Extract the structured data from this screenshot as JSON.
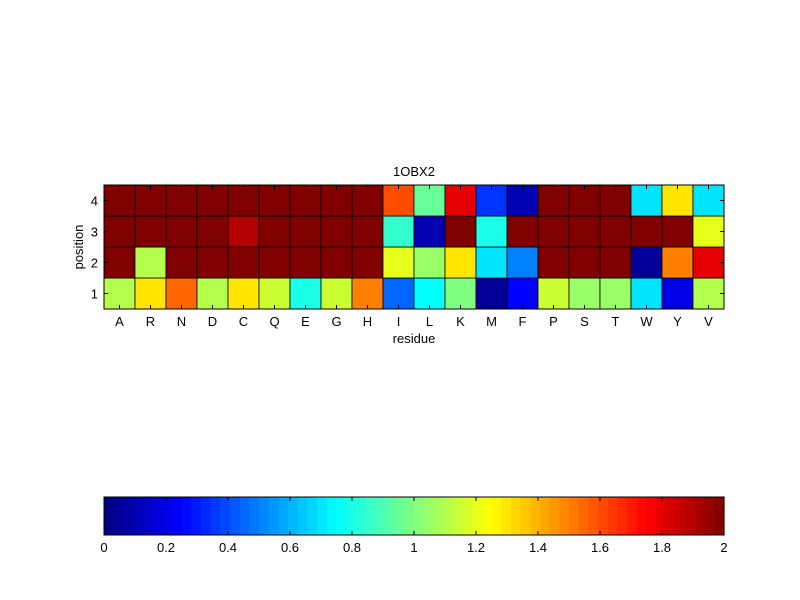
{
  "chart_data": {
    "type": "heatmap",
    "title": "1OBX2",
    "xlabel": "residue",
    "ylabel": "position",
    "x_categories": [
      "A",
      "R",
      "N",
      "D",
      "C",
      "Q",
      "E",
      "G",
      "H",
      "I",
      "L",
      "K",
      "M",
      "F",
      "P",
      "S",
      "T",
      "W",
      "Y",
      "V"
    ],
    "y_categories": [
      "1",
      "2",
      "3",
      "4"
    ],
    "values": [
      [
        1.1,
        1.3,
        1.55,
        1.1,
        1.3,
        1.15,
        0.8,
        1.15,
        1.5,
        0.45,
        0.75,
        1.0,
        0.05,
        0.25,
        1.15,
        1.05,
        1.05,
        0.7,
        0.2,
        1.1
      ],
      [
        2.0,
        1.1,
        2.0,
        2.0,
        2.0,
        2.0,
        2.0,
        2.0,
        2.0,
        1.2,
        1.05,
        1.3,
        0.7,
        0.5,
        2.0,
        2.0,
        2.0,
        0.05,
        1.5,
        1.8
      ],
      [
        2.0,
        2.0,
        2.0,
        2.0,
        1.9,
        2.0,
        2.0,
        2.0,
        2.0,
        0.85,
        0.1,
        2.0,
        0.8,
        2.0,
        2.0,
        2.0,
        2.0,
        2.0,
        2.0,
        1.2
      ],
      [
        2.0,
        2.0,
        2.0,
        2.0,
        2.0,
        2.0,
        2.0,
        2.0,
        2.0,
        1.6,
        0.95,
        1.8,
        0.35,
        0.1,
        2.0,
        2.0,
        2.0,
        0.7,
        1.3,
        0.7
      ]
    ],
    "colormap": "jet",
    "clim": [
      0,
      2
    ],
    "colorbar": {
      "orientation": "horizontal",
      "placement": "bottom",
      "ticks": [
        0,
        0.2,
        0.4,
        0.6,
        0.8,
        1,
        1.2,
        1.4,
        1.6,
        1.8,
        2
      ]
    }
  }
}
